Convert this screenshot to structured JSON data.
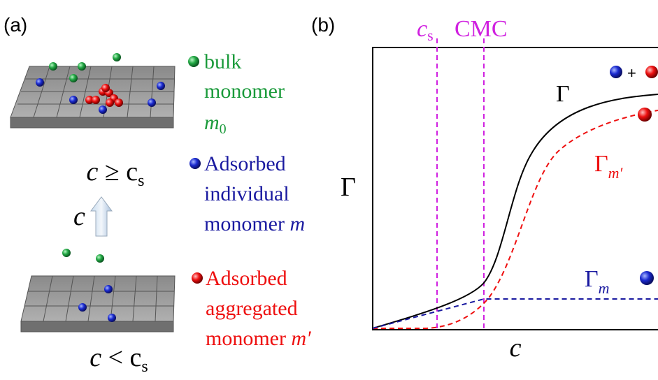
{
  "panel_a": {
    "label": "(a)",
    "legend": [
      {
        "lines": [
          "bulk",
          "monomer"
        ],
        "symbol": "m",
        "subscript": "0"
      },
      {
        "lines": [
          "Adsorbed",
          "individual",
          "monomer"
        ],
        "symbol": "m"
      },
      {
        "lines": [
          "Adsorbed",
          "aggregated",
          "monomer"
        ],
        "symbol": "m′"
      }
    ],
    "top_condition": {
      "var": "c",
      "op": "≥",
      "sym": "c",
      "sub": "s"
    },
    "arrow_label": "c",
    "bottom_condition": {
      "var": "c",
      "op": "<",
      "sym": "c",
      "sub": "s"
    }
  },
  "panel_b": {
    "label": "(b)",
    "cs": {
      "sym": "c",
      "sub": "s"
    },
    "cmc": "CMC",
    "y_label": "Γ",
    "x_label": "c",
    "curve_total": "Γ",
    "curve_aggregated": {
      "sym": "Γ",
      "sub": "m′"
    },
    "curve_individual": {
      "sym": "Γ",
      "sub": "m"
    },
    "plus": "+"
  }
}
